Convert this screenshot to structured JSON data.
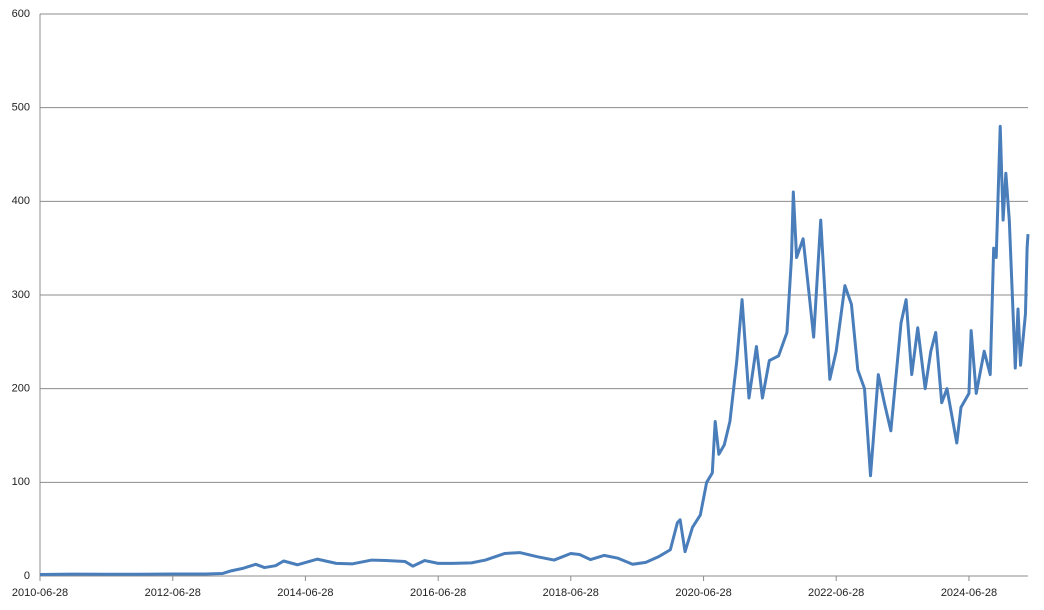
{
  "chart_data": {
    "type": "line",
    "x": [
      "2010-06-28",
      "2010-12-28",
      "2011-06-28",
      "2011-12-28",
      "2012-06-28",
      "2012-12-28",
      "2013-03-28",
      "2013-05-15",
      "2013-07-15",
      "2013-09-28",
      "2013-11-15",
      "2014-01-15",
      "2014-02-28",
      "2014-05-15",
      "2014-09-01",
      "2014-12-15",
      "2015-03-15",
      "2015-06-28",
      "2015-09-15",
      "2015-12-28",
      "2016-02-10",
      "2016-04-15",
      "2016-06-28",
      "2016-09-15",
      "2016-12-28",
      "2017-03-15",
      "2017-06-28",
      "2017-09-20",
      "2017-12-28",
      "2018-03-28",
      "2018-06-28",
      "2018-08-15",
      "2018-10-15",
      "2018-12-28",
      "2019-03-15",
      "2019-06-03",
      "2019-08-15",
      "2019-10-28",
      "2019-12-28",
      "2020-02-05",
      "2020-02-20",
      "2020-03-18",
      "2020-04-28",
      "2020-06-10",
      "2020-07-15",
      "2020-08-15",
      "2020-08-31",
      "2020-09-20",
      "2020-10-20",
      "2020-11-20",
      "2020-12-28",
      "2021-01-26",
      "2021-03-05",
      "2021-04-15",
      "2021-05-18",
      "2021-06-25",
      "2021-08-15",
      "2021-09-30",
      "2021-10-25",
      "2021-11-04",
      "2021-11-22",
      "2021-12-28",
      "2022-01-25",
      "2022-02-24",
      "2022-04-04",
      "2022-05-24",
      "2022-06-28",
      "2022-08-15",
      "2022-09-20",
      "2022-10-25",
      "2022-12-01",
      "2023-01-03",
      "2023-02-15",
      "2023-03-20",
      "2023-04-25",
      "2023-06-20",
      "2023-07-18",
      "2023-08-18",
      "2023-09-20",
      "2023-10-31",
      "2023-12-01",
      "2023-12-28",
      "2024-01-30",
      "2024-02-28",
      "2024-04-22",
      "2024-05-15",
      "2024-06-28",
      "2024-07-10",
      "2024-08-07",
      "2024-09-20",
      "2024-10-23",
      "2024-11-11",
      "2024-11-25",
      "2024-12-17",
      "2025-01-02",
      "2025-01-17",
      "2025-02-05",
      "2025-03-10",
      "2025-03-25",
      "2025-04-08",
      "2025-05-05",
      "2025-05-14",
      "2025-05-19"
    ],
    "values": [
      1.6,
      2.0,
      1.9,
      1.9,
      2.1,
      2.2,
      2.6,
      5.5,
      8,
      12.5,
      9,
      11,
      16,
      12,
      18,
      13.5,
      13,
      17,
      16.5,
      15.5,
      10.5,
      16.5,
      13.5,
      13.5,
      14,
      17,
      24,
      25,
      20.5,
      17,
      24,
      23,
      17.5,
      22,
      19,
      12.5,
      14.5,
      21,
      28,
      57,
      60,
      26,
      52,
      65,
      100,
      110,
      165,
      130,
      140,
      165,
      230,
      295,
      190,
      245,
      190,
      230,
      235,
      260,
      340,
      410,
      340,
      360,
      310,
      255,
      380,
      210,
      240,
      310,
      290,
      220,
      200,
      107,
      215,
      185,
      155,
      270,
      295,
      215,
      265,
      200,
      240,
      260,
      185,
      200,
      142,
      180,
      195,
      262,
      195,
      240,
      215,
      350,
      340,
      480,
      380,
      430,
      380,
      222,
      285,
      225,
      280,
      350,
      365
    ],
    "color": "#4a7ebb",
    "xlim": [
      "2010-06-28",
      "2025-05-19"
    ],
    "xticks": [
      "2010-06-28",
      "2012-06-28",
      "2014-06-28",
      "2016-06-28",
      "2018-06-28",
      "2020-06-28",
      "2022-06-28",
      "2024-06-28"
    ],
    "ylim": [
      0,
      600
    ],
    "yticks": [
      0,
      100,
      200,
      300,
      400,
      500,
      600
    ],
    "grid": true
  }
}
